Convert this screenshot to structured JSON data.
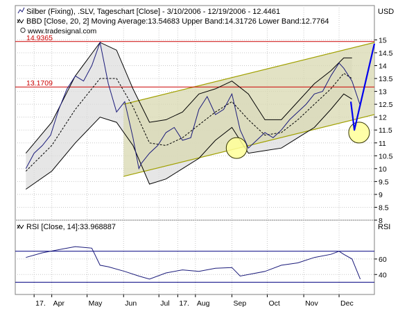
{
  "header": {
    "title_line": "Silber (Fixing), .SLV, Tageschart [Close] - 3/10/2006 - 12/19/2006 - 12.4461",
    "bb_line": "BBD [Close, 20, 2] Moving Average:13.54683 Upper Band:14.31726 Lower Band:12.7764",
    "watermark": "www.tradesignal.com",
    "price_unit": "USD",
    "rsi_line": "RSI [Close, 14]:33.968887",
    "rsi_unit": "RSI"
  },
  "colors": {
    "price_line": "#1a1a7a",
    "bands": "#000000",
    "band_fill": "#dcdcdc",
    "channel_fill": "#d8d8b0",
    "channel_line": "#a0a000",
    "level_line": "#cc0000",
    "projection": "#0000ee",
    "highlight_fill": "#ffff99",
    "rsi_line": "#1a1a7a",
    "rsi_level": "#000080",
    "grid": "#c8c8c8",
    "panel_border": "#7f7f7f"
  },
  "chart_data": [
    {
      "type": "line",
      "title": "Silber (Fixing), .SLV, Tageschart [Close] - 3/10/2006 - 12/19/2006 - 12.4461",
      "ylabel": "USD",
      "ylim": [
        8,
        15.2
      ],
      "y_ticks": [
        "15",
        "14.5",
        "14",
        "13.5",
        "13",
        "12.5",
        "12",
        "11.5",
        "11",
        "10.5",
        "10",
        "9.5",
        "9",
        "8.5",
        "8"
      ],
      "x_tick_labels": [
        "17.",
        "Apr",
        "May",
        "Jun",
        "Jul",
        "17.",
        "Aug",
        "Sep",
        "Oct",
        "Nov",
        "Dec"
      ],
      "grid": true,
      "series": [
        {
          "name": "Silber (Fixing)",
          "x": [
            "2006-03-10",
            "2006-03-17",
            "2006-03-24",
            "2006-03-31",
            "2006-04-07",
            "2006-04-14",
            "2006-04-21",
            "2006-04-28",
            "2006-05-05",
            "2006-05-12",
            "2006-05-19",
            "2006-05-26",
            "2006-06-02",
            "2006-06-09",
            "2006-06-14",
            "2006-06-16",
            "2006-06-23",
            "2006-06-30",
            "2006-07-07",
            "2006-07-14",
            "2006-07-21",
            "2006-07-28",
            "2006-08-04",
            "2006-08-11",
            "2006-08-18",
            "2006-08-25",
            "2006-09-01",
            "2006-09-08",
            "2006-09-15",
            "2006-09-22",
            "2006-09-29",
            "2006-10-06",
            "2006-10-13",
            "2006-10-20",
            "2006-10-27",
            "2006-11-03",
            "2006-11-10",
            "2006-11-17",
            "2006-11-24",
            "2006-12-01",
            "2006-12-05",
            "2006-12-12",
            "2006-12-19"
          ],
          "values": [
            10.0,
            10.6,
            10.9,
            11.3,
            12.3,
            13.1,
            13.6,
            13.4,
            14.0,
            14.9,
            13.3,
            12.2,
            12.6,
            11.2,
            10.0,
            10.2,
            10.6,
            10.9,
            11.4,
            11.6,
            11.1,
            11.2,
            12.3,
            12.8,
            12.1,
            12.3,
            12.9,
            11.5,
            10.8,
            11.1,
            11.4,
            11.2,
            11.5,
            11.9,
            12.2,
            12.5,
            12.9,
            13.0,
            13.6,
            14.1,
            13.9,
            13.4,
            12.45
          ]
        },
        {
          "name": "Upper Band",
          "x": [
            "2006-03-10",
            "2006-04-01",
            "2006-04-21",
            "2006-05-12",
            "2006-05-26",
            "2006-06-09",
            "2006-06-23",
            "2006-07-07",
            "2006-07-21",
            "2006-08-04",
            "2006-08-18",
            "2006-09-01",
            "2006-09-15",
            "2006-09-29",
            "2006-10-13",
            "2006-10-27",
            "2006-11-10",
            "2006-11-24",
            "2006-12-05",
            "2006-12-12"
          ],
          "values": [
            10.6,
            11.8,
            13.6,
            14.9,
            14.6,
            13.1,
            11.8,
            11.9,
            12.2,
            12.9,
            13.1,
            13.4,
            12.9,
            11.9,
            11.9,
            12.6,
            13.3,
            13.8,
            14.3,
            14.3
          ]
        },
        {
          "name": "Moving Average",
          "x": [
            "2006-03-10",
            "2006-04-01",
            "2006-04-21",
            "2006-05-12",
            "2006-05-26",
            "2006-06-09",
            "2006-06-23",
            "2006-07-07",
            "2006-07-21",
            "2006-08-04",
            "2006-08-18",
            "2006-09-01",
            "2006-09-15",
            "2006-09-29",
            "2006-10-13",
            "2006-10-27",
            "2006-11-10",
            "2006-11-24",
            "2006-12-05",
            "2006-12-12"
          ],
          "values": [
            9.9,
            10.9,
            12.3,
            13.5,
            13.5,
            12.4,
            11.0,
            10.9,
            11.2,
            11.7,
            12.2,
            12.6,
            11.9,
            11.3,
            11.4,
            11.9,
            12.5,
            13.1,
            13.7,
            13.5
          ]
        },
        {
          "name": "Lower Band",
          "x": [
            "2006-03-10",
            "2006-04-01",
            "2006-04-21",
            "2006-05-12",
            "2006-05-26",
            "2006-06-09",
            "2006-06-23",
            "2006-07-07",
            "2006-07-21",
            "2006-08-04",
            "2006-08-18",
            "2006-09-01",
            "2006-09-15",
            "2006-09-29",
            "2006-10-13",
            "2006-10-27",
            "2006-11-10",
            "2006-11-24",
            "2006-12-05",
            "2006-12-12"
          ],
          "values": [
            9.2,
            9.9,
            11.0,
            12.0,
            11.8,
            10.9,
            9.4,
            9.6,
            10.0,
            10.4,
            11.1,
            11.6,
            10.6,
            10.7,
            10.8,
            11.2,
            11.6,
            12.3,
            12.9,
            12.7
          ]
        }
      ],
      "annotations": {
        "horizontal_levels": [
          {
            "label": "14.9365",
            "value": 14.9365
          },
          {
            "label": "13.1709",
            "value": 13.1709
          }
        ],
        "channel": {
          "upper": [
            {
              "x": "2006-06-01",
              "y": 12.5
            },
            {
              "x": "2006-12-31",
              "y": 14.9
            }
          ],
          "lower": [
            {
              "x": "2006-06-01",
              "y": 9.7
            },
            {
              "x": "2006-12-31",
              "y": 12.1
            }
          ]
        },
        "projection": [
          {
            "x": "2006-12-11",
            "y": 12.6
          },
          {
            "x": "2006-12-14",
            "y": 11.5
          },
          {
            "x": "2006-12-31",
            "y": 14.85
          }
        ],
        "highlight_circles": [
          {
            "x": "2006-09-05",
            "y": 10.8
          },
          {
            "x": "2006-12-18",
            "y": 11.4
          }
        ]
      }
    },
    {
      "type": "line",
      "title": "RSI [Close, 14]:33.968887",
      "ylabel": "RSI",
      "ylim": [
        25,
        85
      ],
      "y_ticks": [
        "60",
        "40"
      ],
      "levels": [
        70,
        30
      ],
      "series": [
        {
          "name": "RSI [Close, 14]",
          "x": [
            "2006-03-10",
            "2006-03-24",
            "2006-04-07",
            "2006-04-21",
            "2006-05-05",
            "2006-05-12",
            "2006-05-19",
            "2006-06-02",
            "2006-06-14",
            "2006-06-23",
            "2006-07-07",
            "2006-07-21",
            "2006-08-04",
            "2006-08-18",
            "2006-09-01",
            "2006-09-08",
            "2006-09-15",
            "2006-09-29",
            "2006-10-13",
            "2006-10-27",
            "2006-11-10",
            "2006-11-24",
            "2006-12-01",
            "2006-12-05",
            "2006-12-12",
            "2006-12-19"
          ],
          "values": [
            62,
            68,
            72,
            76,
            74,
            52,
            50,
            44,
            38,
            34,
            42,
            46,
            44,
            48,
            49,
            38,
            40,
            44,
            52,
            55,
            62,
            66,
            70,
            66,
            60,
            34
          ]
        }
      ]
    }
  ]
}
